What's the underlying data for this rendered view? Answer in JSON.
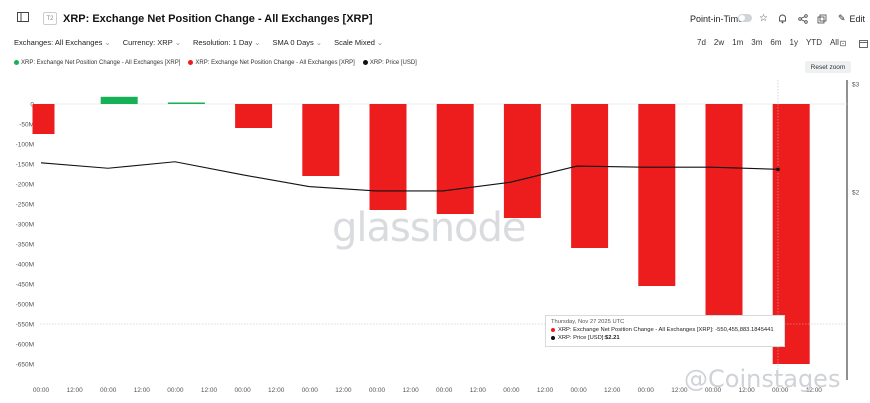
{
  "header": {
    "badge": "T2",
    "title": "XRP: Exchange Net Position Change - All Exchanges [XRP]",
    "point_in_time_label": "Point-in-Time",
    "edit_label": "Edit"
  },
  "filters": [
    {
      "label": "Exchanges: All Exchanges"
    },
    {
      "label": "Currency: XRP"
    },
    {
      "label": "Resolution: 1 Day"
    },
    {
      "label": "SMA 0 Days"
    },
    {
      "label": "Scale Mixed"
    }
  ],
  "ranges": [
    "7d",
    "2w",
    "1m",
    "3m",
    "6m",
    "1y",
    "YTD",
    "All"
  ],
  "legend": [
    {
      "label": "XRP: Exchange Net Position Change - All Exchanges [XRP]",
      "color": "#16b157"
    },
    {
      "label": "XRP: Exchange Net Position Change - All Exchanges [XRP]",
      "color": "#ee1d1d"
    },
    {
      "label": "XRP: Price [USD]",
      "color": "#111111"
    }
  ],
  "reset_zoom_label": "Reset zoom",
  "tooltip": {
    "date": "Thursday, Nov 27 2025 UTC",
    "line1": "XRP: Exchange Net Position Change - All Exchanges [XRP]: -550,455,883.1845441",
    "line2_label": "XRP: Price [USD]: ",
    "line2_value": "$2.21"
  },
  "watermark": "glassnode",
  "source_watermark": "@Coinstages",
  "chart_data": {
    "type": "bar",
    "colors": {
      "positive": "#16b157",
      "negative": "#ee1d1d",
      "price": "#111111"
    },
    "y_left": {
      "min": -650,
      "max": 0,
      "ticks": [
        0,
        -50,
        -100,
        -150,
        -200,
        -250,
        -300,
        -350,
        -400,
        -450,
        -500,
        -550,
        -600,
        -650
      ],
      "tick_labels": [
        "0",
        "-50M",
        "-100M",
        "-150M",
        "-200M",
        "-250M",
        "-300M",
        "-350M",
        "-400M",
        "-450M",
        "-500M",
        "-550M",
        "-600M",
        "-650M"
      ]
    },
    "y_right": {
      "tick_labels": [
        "$3",
        "$2"
      ],
      "ticks": [
        3,
        2
      ]
    },
    "x_tick_labels": [
      "00:00",
      "12:00",
      "00:00",
      "12:00",
      "00:00",
      "12:00",
      "00:00",
      "12:00",
      "00:00",
      "12:00",
      "00:00",
      "12:00",
      "00:00",
      "12:00",
      "00:00",
      "12:00",
      "00:00",
      "12:00",
      "00:00",
      "12:00",
      "00:00",
      "12:00",
      "00:00",
      "12:00"
    ],
    "series": [
      {
        "name": "XRP: Exchange Net Position Change - All Exchanges [XRP]",
        "values": [
          -75,
          18,
          2,
          -60,
          -180,
          -265,
          -275,
          -285,
          -360,
          -455,
          -550,
          -650
        ]
      },
      {
        "name": "XRP: Price [USD]",
        "values": [
          2.27,
          2.22,
          2.28,
          2.16,
          2.05,
          2.01,
          2.01,
          2.09,
          2.24,
          2.23,
          2.23,
          2.21
        ]
      }
    ]
  }
}
